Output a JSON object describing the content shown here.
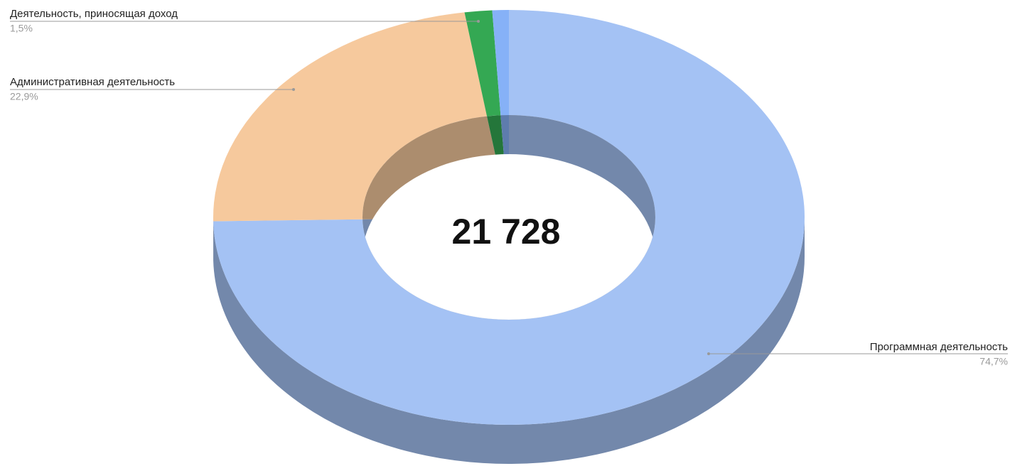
{
  "chart_data": {
    "type": "pie",
    "donut": true,
    "three_d": true,
    "center_label": "21 728",
    "categories": [
      "Программная деятельность",
      "Административная деятельность",
      "Деятельность, приносящая доход",
      null
    ],
    "values": [
      74.7,
      22.9,
      1.5,
      0.9
    ],
    "value_labels": [
      "74,7%",
      "22,9%",
      "1,5%",
      null
    ],
    "colors": [
      "#a4c2f4",
      "#f6c99d",
      "#34a853",
      "#86b1f7"
    ]
  }
}
